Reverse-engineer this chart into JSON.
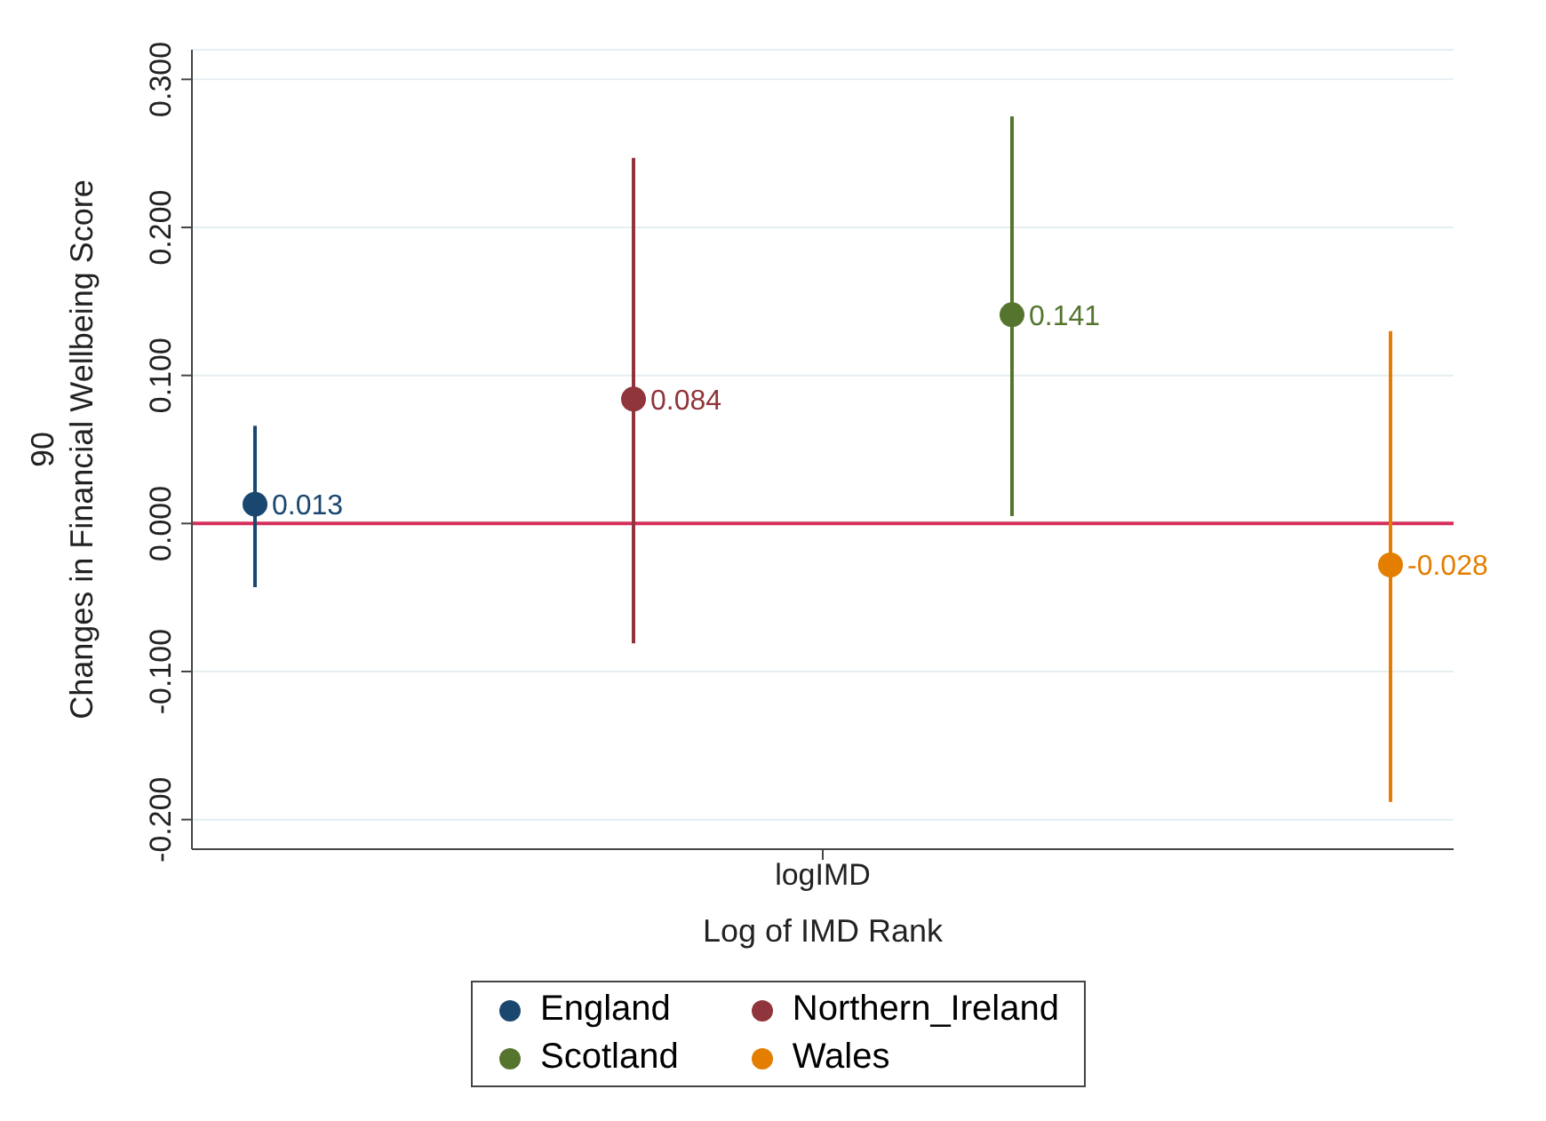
{
  "chart_data": {
    "type": "scatter",
    "xlabel": "Log of IMD Rank",
    "ylabel": "90\nChanges in Financial Wellbeing Score",
    "categories": [
      "logIMD"
    ],
    "series": [
      {
        "name": "England",
        "color": "#1a476f",
        "values": [
          0.013
        ],
        "errors": [
          [
            -0.043,
            0.066
          ]
        ]
      },
      {
        "name": "Northern_Ireland",
        "color": "#90353b",
        "values": [
          0.084
        ],
        "errors": [
          [
            -0.081,
            0.247
          ]
        ]
      },
      {
        "name": "Scotland",
        "color": "#55752f",
        "values": [
          0.141
        ],
        "errors": [
          [
            0.005,
            0.275
          ]
        ]
      },
      {
        "name": "Wales",
        "color": "#e37e00",
        "values": [
          -0.028
        ],
        "errors": [
          [
            -0.188,
            0.13
          ]
        ]
      }
    ],
    "ylim": [
      -0.22,
      0.32
    ],
    "yticks": [
      {
        "value": -0.2,
        "label": "-0.200"
      },
      {
        "value": -0.1,
        "label": "-0.100"
      },
      {
        "value": 0,
        "label": "0.000"
      },
      {
        "value": 0.1,
        "label": "0.100"
      },
      {
        "value": 0.2,
        "label": "0.200"
      },
      {
        "value": 0.3,
        "label": "0.300"
      }
    ],
    "ref_lines": [
      {
        "axis": "y",
        "value": 0,
        "color": "#d6305a"
      }
    ],
    "grid": "y",
    "legend": "bottom",
    "marker": "circle",
    "data_labels": true
  }
}
